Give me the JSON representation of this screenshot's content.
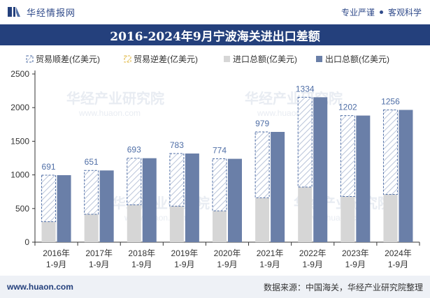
{
  "header": {
    "brand": "华经情报网",
    "tagline_left": "专业严谨",
    "tagline_right": "客观科学"
  },
  "footer": {
    "site": "www.huaon.com",
    "source": "数据来源：中国海关，华经产业研究院整理"
  },
  "watermark": {
    "cn": "华经产业研究院",
    "en": "www.huaon.com"
  },
  "colors": {
    "header_bar": "#24407c",
    "surplus": "#4f6ea6",
    "deficit": "#e0b640",
    "import": "#d6d6d6",
    "export": "#6a7fa8",
    "label": "#4f6ea6"
  },
  "chart_data": {
    "type": "bar",
    "title": "2016-2024年9月宁波海关进出口差额",
    "categories": [
      [
        "2016年",
        "1-9月"
      ],
      [
        "2017年",
        "1-9月"
      ],
      [
        "2018年",
        "1-9月"
      ],
      [
        "2019年",
        "1-9月"
      ],
      [
        "2020年",
        "1-9月"
      ],
      [
        "2021年",
        "1-9月"
      ],
      [
        "2022年",
        "1-9月"
      ],
      [
        "2023年",
        "1-9月"
      ],
      [
        "2024年",
        "1-9月"
      ]
    ],
    "series": [
      {
        "name": "贸易顺差(亿美元)",
        "values": [
          691,
          651,
          693,
          783,
          774,
          979,
          1334,
          1202,
          1256
        ]
      },
      {
        "name": "贸易逆差(亿美元)",
        "values": [
          0,
          0,
          0,
          0,
          0,
          0,
          0,
          0,
          0
        ]
      },
      {
        "name": "进口总额(亿美元)",
        "values": [
          305,
          415,
          555,
          535,
          465,
          660,
          820,
          680,
          710
        ]
      },
      {
        "name": "出口总额(亿美元)",
        "values": [
          996,
          1066,
          1248,
          1318,
          1239,
          1639,
          2154,
          1882,
          1966
        ]
      }
    ],
    "ylim": [
      0,
      2500
    ],
    "yticks": [
      0,
      500,
      1000,
      1500,
      2000,
      2500
    ],
    "grid": false,
    "legend_position": "top"
  }
}
